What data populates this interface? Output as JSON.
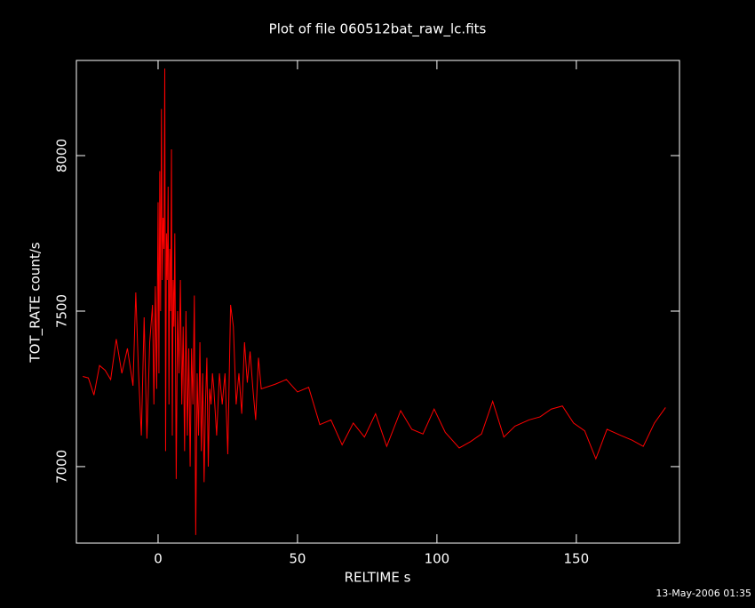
{
  "chart_data": {
    "type": "line",
    "title": "Plot of file 060512bat_raw_lc.fits",
    "x_label": "RELTIME  s",
    "y_label": "TOT_RATE  count/s",
    "footer": "13-May-2006 01:35",
    "x": [
      -27,
      -25,
      -23,
      -21,
      -19,
      -17,
      -15,
      -13,
      -11,
      -9,
      -8,
      -7,
      -6,
      -5,
      -4,
      -3,
      -2,
      -1.5,
      -1,
      -0.5,
      0,
      0.3,
      0.6,
      0.9,
      1.2,
      1.5,
      1.8,
      2.1,
      2.4,
      2.7,
      3,
      3.3,
      3.6,
      3.9,
      4.2,
      4.5,
      4.8,
      5.1,
      5.4,
      5.7,
      6,
      6.5,
      7,
      7.5,
      8,
      8.5,
      9,
      9.5,
      10,
      10.5,
      11,
      11.5,
      12,
      12.5,
      13,
      13.5,
      14,
      14.5,
      15,
      15.5,
      16,
      16.5,
      17,
      17.5,
      18,
      18.5,
      19,
      19.5,
      20,
      21,
      22,
      23,
      24,
      25,
      26,
      27,
      28,
      29,
      30,
      31,
      32,
      33,
      34,
      35,
      36,
      37,
      42,
      46,
      50,
      54,
      58,
      62,
      66,
      70,
      74,
      78,
      82,
      87,
      91,
      95,
      99,
      103,
      108,
      112,
      116,
      120,
      124,
      128,
      133,
      137,
      141,
      145,
      149,
      153,
      157,
      161,
      166,
      170,
      174,
      178,
      182
    ],
    "series": [
      {
        "name": "TOT_RATE",
        "color": "#ff0000",
        "values": [
          7290,
          7285,
          7230,
          7325,
          7310,
          7280,
          7410,
          7300,
          7380,
          7260,
          7560,
          7300,
          7100,
          7480,
          7090,
          7400,
          7520,
          7200,
          7580,
          7250,
          7850,
          7300,
          7950,
          7500,
          8150,
          7600,
          7800,
          7700,
          8280,
          7050,
          7750,
          7600,
          7900,
          7200,
          7700,
          7500,
          8020,
          7100,
          7600,
          7450,
          7750,
          6960,
          7500,
          7300,
          7600,
          7200,
          7450,
          7050,
          7500,
          7100,
          7380,
          7000,
          7380,
          7200,
          7550,
          6780,
          7300,
          7100,
          7400,
          7050,
          7300,
          6950,
          7200,
          7350,
          7000,
          7250,
          7200,
          7300,
          7250,
          7100,
          7300,
          7200,
          7300,
          7040,
          7520,
          7450,
          7200,
          7300,
          7170,
          7400,
          7270,
          7370,
          7250,
          7150,
          7350,
          7250,
          7265,
          7280,
          7240,
          7255,
          7135,
          7150,
          7070,
          7140,
          7095,
          7170,
          7065,
          7180,
          7120,
          7105,
          7185,
          7110,
          7060,
          7080,
          7105,
          7210,
          7095,
          7130,
          7150,
          7160,
          7185,
          7195,
          7140,
          7115,
          7025,
          7120,
          7100,
          7085,
          7065,
          7140,
          7190
        ]
      }
    ],
    "xlim": [
      -29.3,
      187
    ],
    "xticks": [
      0,
      50,
      100,
      150
    ],
    "ylim": [
      6754,
      8306
    ],
    "yticks": [
      7000,
      7500,
      8000
    ],
    "axis_color": "#ffffff"
  }
}
